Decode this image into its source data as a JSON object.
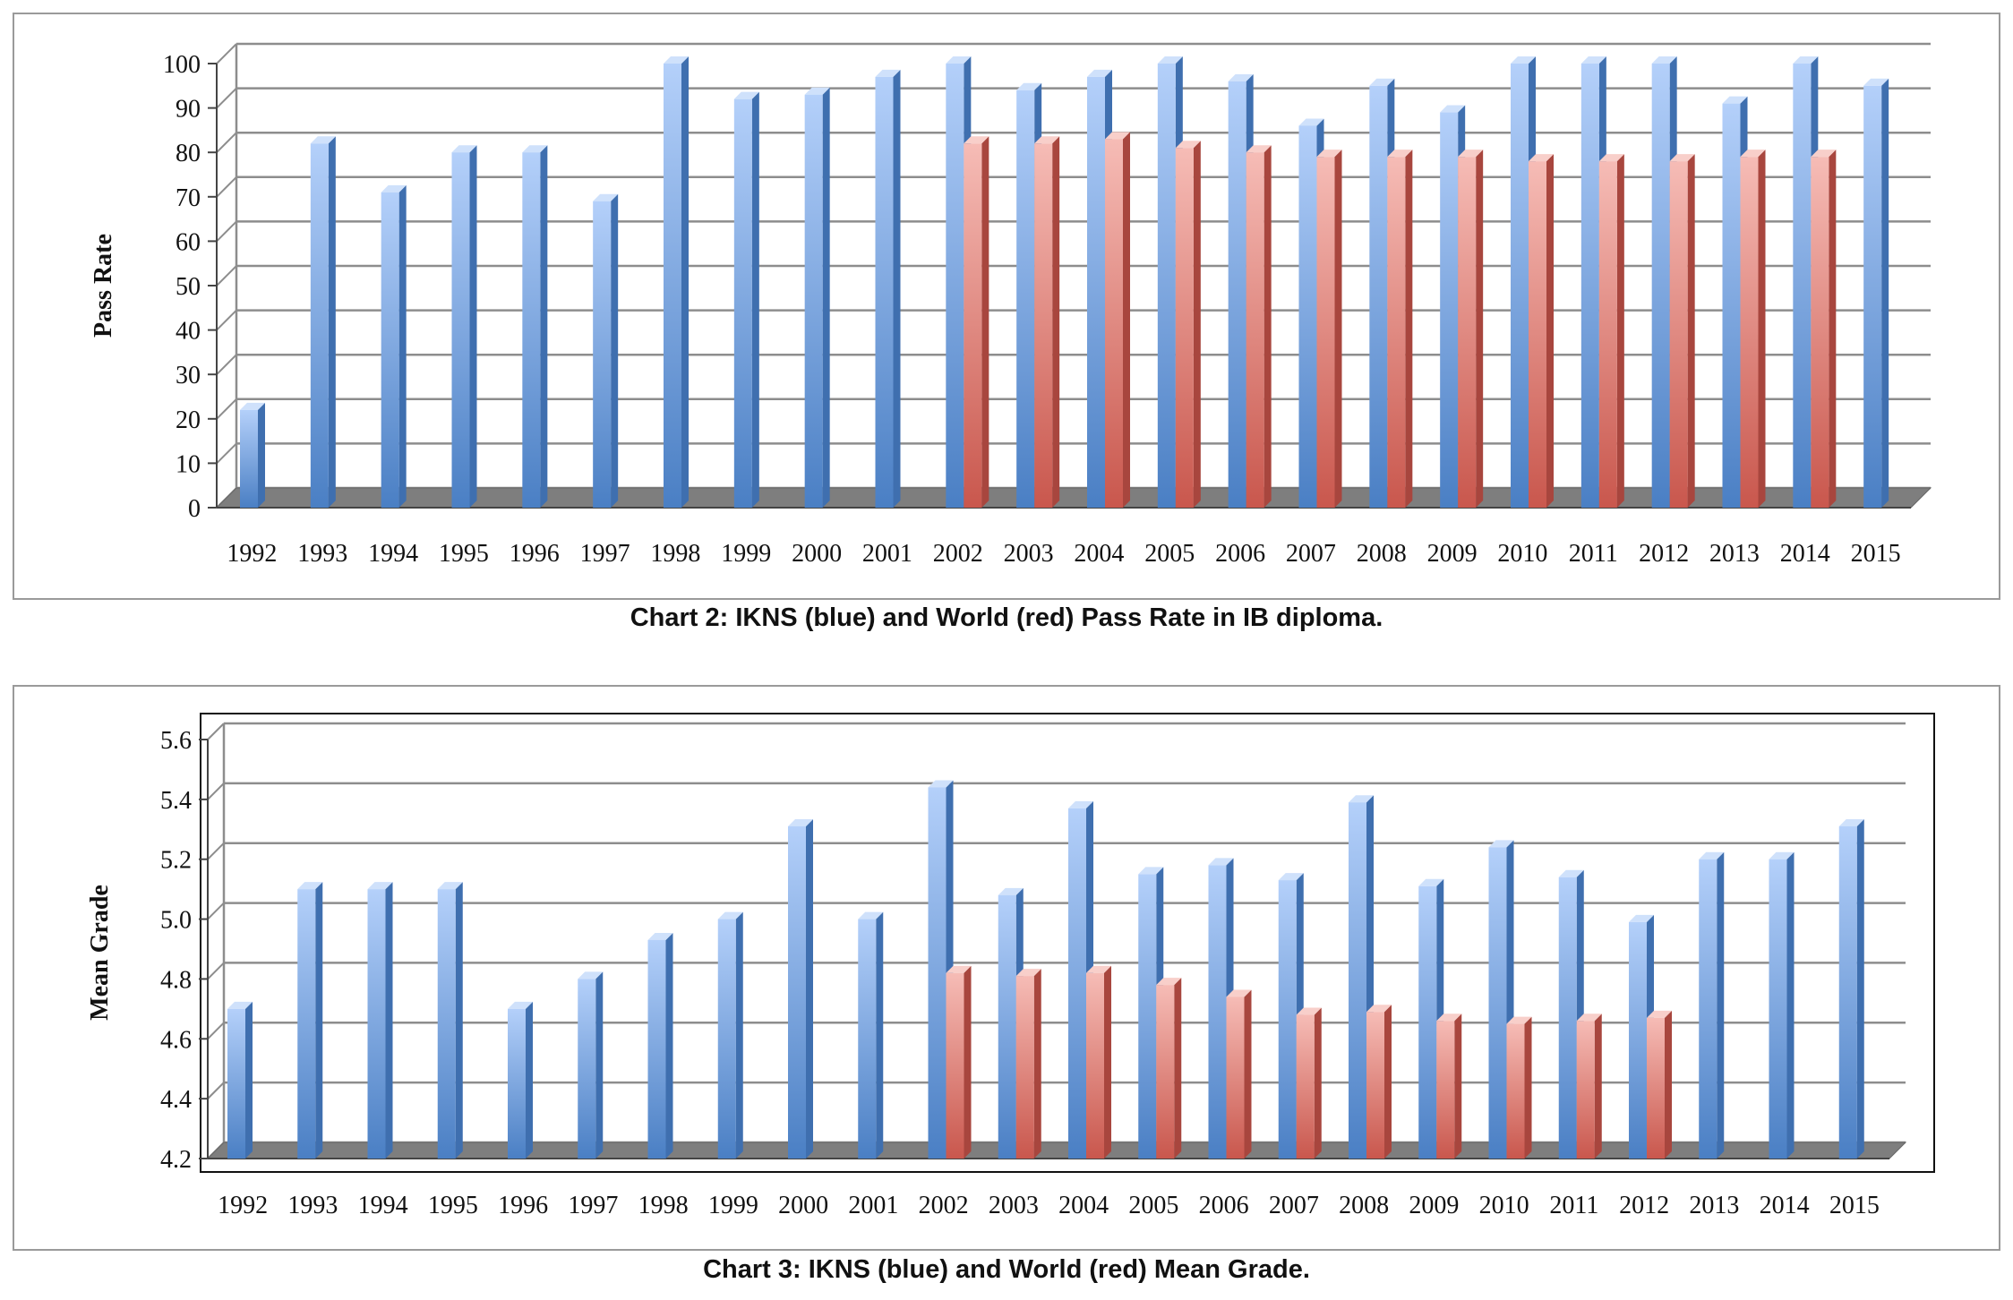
{
  "chart_data": [
    {
      "type": "bar",
      "title": "Chart 2:  IKNS (blue) and World (red) Pass Rate in IB diploma.",
      "ylabel": "Pass Rate",
      "xlabel": "",
      "ylim": [
        0,
        100
      ],
      "yticks": [
        "0",
        "10",
        "20",
        "30",
        "40",
        "50",
        "60",
        "70",
        "80",
        "90",
        "100"
      ],
      "categories": [
        "1992",
        "1993",
        "1994",
        "1995",
        "1996",
        "1997",
        "1998",
        "1999",
        "2000",
        "2001",
        "2002",
        "2003",
        "2004",
        "2005",
        "2006",
        "2007",
        "2008",
        "2009",
        "2010",
        "2011",
        "2012",
        "2013",
        "2014",
        "2015"
      ],
      "series": [
        {
          "color": "#6f9fdc",
          "values": [
            22,
            82,
            71,
            80,
            80,
            69,
            100,
            92,
            93,
            97,
            100,
            94,
            97,
            100,
            96,
            86,
            95,
            89,
            100,
            100,
            100,
            91,
            100,
            95
          ]
        },
        {
          "color": "#dd7a72",
          "values": [
            null,
            null,
            null,
            null,
            null,
            null,
            null,
            null,
            null,
            null,
            82,
            82,
            83,
            81,
            80,
            79,
            79,
            79,
            78,
            78,
            78,
            79,
            79,
            null
          ]
        }
      ],
      "grid": true
    },
    {
      "type": "bar",
      "title": "Chart 3:  IKNS (blue) and World (red) Mean Grade.",
      "ylabel": "Mean Grade",
      "xlabel": "",
      "ylim": [
        4.2,
        5.6
      ],
      "yticks": [
        "4.2",
        "4.4",
        "4.6",
        "4.8",
        "5.0",
        "5.2",
        "5.4",
        "5.6"
      ],
      "categories": [
        "1992",
        "1993",
        "1994",
        "1995",
        "1996",
        "1997",
        "1998",
        "1999",
        "2000",
        "2001",
        "2002",
        "2003",
        "2004",
        "2005",
        "2006",
        "2007",
        "2008",
        "2009",
        "2010",
        "2011",
        "2012",
        "2013",
        "2014",
        "2015"
      ],
      "series": [
        {
          "color": "#6f9fdc",
          "values": [
            4.7,
            5.1,
            5.1,
            5.1,
            4.7,
            4.8,
            4.93,
            5.0,
            5.31,
            5.0,
            5.44,
            5.08,
            5.37,
            5.15,
            5.18,
            5.13,
            5.39,
            5.11,
            5.24,
            5.14,
            4.99,
            5.2,
            5.2,
            5.31
          ]
        },
        {
          "color": "#dd7a72",
          "values": [
            null,
            null,
            null,
            null,
            null,
            null,
            null,
            null,
            null,
            null,
            4.82,
            4.81,
            4.82,
            4.78,
            4.74,
            4.68,
            4.69,
            4.66,
            4.65,
            4.66,
            4.67,
            null,
            null,
            null
          ]
        }
      ],
      "grid": true
    }
  ]
}
